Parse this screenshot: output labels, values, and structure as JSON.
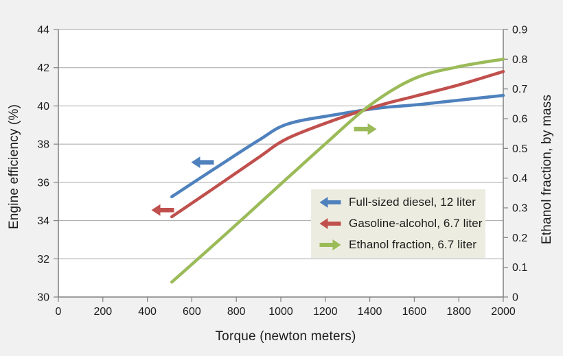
{
  "figure": {
    "bg_color": "#F1F1F1",
    "plot_bg_color": "#FFFFFF",
    "gridline_color": "#A6A6A6",
    "axis_color": "#808080",
    "text_color": "#1C1C1C"
  },
  "chart_data": {
    "type": "line",
    "title": "",
    "xlabel": "Torque (newton meters)",
    "ylabel_left": "Engine efficiency (%)",
    "ylabel_right": "Ethanol fraction, by mass",
    "x_range": [
      0,
      2000
    ],
    "x_ticks": [
      0,
      200,
      400,
      600,
      800,
      1000,
      1200,
      1400,
      1600,
      1800,
      2000
    ],
    "y_left_range": [
      30,
      44
    ],
    "y_left_ticks": [
      44,
      42,
      40,
      38,
      36,
      34,
      32,
      30
    ],
    "y_right_range": [
      0,
      0.9
    ],
    "y_right_ticks": [
      "0.9",
      "0.8",
      "0.7",
      "0.6",
      "0.5",
      "0.4",
      "0.3",
      "0.2",
      "0.1",
      "0"
    ],
    "grid": "horizontal",
    "legend_position": "inside-lower-right",
    "series": [
      {
        "name": "Full-sized diesel, 12 liter",
        "color": "#4F81BD",
        "axis": "left",
        "arrow": "left",
        "points": [
          [
            510,
            35.25
          ],
          [
            700,
            36.7
          ],
          [
            900,
            38.2
          ],
          [
            1030,
            39.05
          ],
          [
            1250,
            39.55
          ],
          [
            1450,
            39.9
          ],
          [
            1600,
            40.05
          ],
          [
            1800,
            40.3
          ],
          [
            2000,
            40.55
          ]
        ]
      },
      {
        "name": "Gasoline-alcohol, 6.7 liter",
        "color": "#C0504D",
        "axis": "left",
        "arrow": "left",
        "points": [
          [
            510,
            34.2
          ],
          [
            700,
            35.7
          ],
          [
            900,
            37.3
          ],
          [
            1030,
            38.3
          ],
          [
            1250,
            39.3
          ],
          [
            1450,
            40.05
          ],
          [
            1600,
            40.5
          ],
          [
            1800,
            41.1
          ],
          [
            2000,
            41.8
          ]
        ]
      },
      {
        "name": "Ethanol fraction, 6.7 liter",
        "color": "#9BBB59",
        "axis": "right",
        "arrow": "right",
        "points": [
          [
            510,
            0.05
          ],
          [
            750,
            0.21
          ],
          [
            1000,
            0.38
          ],
          [
            1200,
            0.515
          ],
          [
            1400,
            0.645
          ],
          [
            1600,
            0.735
          ],
          [
            1800,
            0.775
          ],
          [
            2000,
            0.8
          ]
        ]
      }
    ],
    "annotations": [
      {
        "type": "arrow",
        "direction": "left",
        "series": 0,
        "x": 648,
        "y_axis": "left",
        "y": 37.05
      },
      {
        "type": "arrow",
        "direction": "left",
        "series": 1,
        "x": 469,
        "y_axis": "left",
        "y": 34.55
      },
      {
        "type": "arrow",
        "direction": "right",
        "series": 2,
        "x": 1380,
        "y_axis": "right",
        "y": 0.565
      }
    ]
  },
  "legend": {
    "bg_color": "#ECEDE0"
  }
}
